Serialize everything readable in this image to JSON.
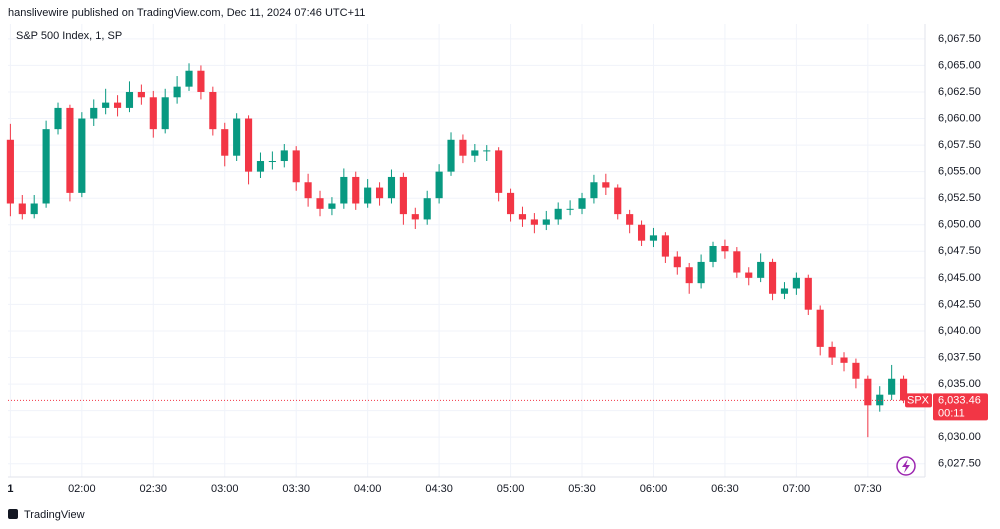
{
  "header": {
    "published": "hanslivewire published on TradingView.com, Dec 11, 2024 07:46 UTC+11"
  },
  "chart_data": {
    "type": "candlestick",
    "title": "S&P 500 Index, 1, SP",
    "symbol": "SPX",
    "up_color": "#089981",
    "down_color": "#f23645",
    "grid": true,
    "x": [
      "01:30",
      "01:35",
      "01:40",
      "01:45",
      "01:50",
      "01:55",
      "02:00",
      "02:05",
      "02:10",
      "02:15",
      "02:20",
      "02:25",
      "02:30",
      "02:35",
      "02:40",
      "02:45",
      "02:50",
      "02:55",
      "03:00",
      "03:05",
      "03:10",
      "03:15",
      "03:20",
      "03:25",
      "03:30",
      "03:35",
      "03:40",
      "03:45",
      "03:50",
      "03:55",
      "04:00",
      "04:05",
      "04:10",
      "04:15",
      "04:20",
      "04:25",
      "04:30",
      "04:35",
      "04:40",
      "04:45",
      "04:50",
      "04:55",
      "05:00",
      "05:05",
      "05:10",
      "05:15",
      "05:20",
      "05:25",
      "05:30",
      "05:35",
      "05:40",
      "05:45",
      "05:50",
      "05:55",
      "06:00",
      "06:05",
      "06:10",
      "06:15",
      "06:20",
      "06:25",
      "06:30",
      "06:35",
      "06:40",
      "06:45",
      "06:50",
      "06:55",
      "07:00",
      "07:05",
      "07:10",
      "07:15",
      "07:20",
      "07:25",
      "07:30",
      "07:35",
      "07:40",
      "07:45"
    ],
    "open": [
      6058,
      6052,
      6051,
      6052,
      6059,
      6061,
      6053,
      6060,
      6061,
      6061.5,
      6061,
      6062.5,
      6062,
      6059,
      6062,
      6063,
      6064.5,
      6062.5,
      6059,
      6056.5,
      6060,
      6055,
      6056,
      6056,
      6057,
      6054,
      6052.5,
      6051.5,
      6052,
      6054.5,
      6052,
      6053.5,
      6052.5,
      6054.5,
      6051,
      6050.5,
      6052.5,
      6055,
      6058,
      6056.5,
      6057,
      6057,
      6053,
      6051,
      6050.5,
      6050,
      6050.5,
      6051.5,
      6051.5,
      6052.5,
      6054,
      6053.5,
      6051,
      6050,
      6048.5,
      6049,
      6047,
      6046,
      6044.5,
      6046.5,
      6048,
      6047.5,
      6045.5,
      6045,
      6046.5,
      6043.5,
      6044,
      6045,
      6042,
      6038.5,
      6037.5,
      6037,
      6035.5,
      6033,
      6034,
      6035.5
    ],
    "high": [
      6059.5,
      6052.8,
      6052.8,
      6059.8,
      6061.5,
      6061.3,
      6060.6,
      6061.8,
      6062.8,
      6062.2,
      6063.5,
      6063.2,
      6062.6,
      6062.8,
      6064,
      6065.2,
      6065,
      6063,
      6059.6,
      6060.5,
      6060.3,
      6056.8,
      6056.9,
      6057.6,
      6057.4,
      6054.8,
      6053.2,
      6052.6,
      6055.3,
      6055,
      6054.3,
      6054,
      6055.2,
      6054.9,
      6051.6,
      6053.2,
      6055.7,
      6058.7,
      6058.5,
      6057.6,
      6057.5,
      6057.3,
      6053.4,
      6051.7,
      6051.1,
      6051.3,
      6052.1,
      6052.3,
      6053,
      6054.7,
      6054.8,
      6053.8,
      6051.4,
      6050.4,
      6049.7,
      6049.3,
      6047.5,
      6046.4,
      6047.2,
      6048.4,
      6048.6,
      6047.9,
      6046,
      6047.3,
      6046.8,
      6044.6,
      6045.5,
      6045.3,
      6042.4,
      6039,
      6038,
      6037.4,
      6035.8,
      6034.8,
      6036.8,
      6035.8
    ],
    "low": [
      6050.8,
      6050.5,
      6050.6,
      6051.6,
      6058.5,
      6052.2,
      6052.6,
      6059.3,
      6060.4,
      6060.2,
      6060.6,
      6061.3,
      6058.2,
      6058.6,
      6061.4,
      6062.6,
      6061.8,
      6058.4,
      6055.5,
      6056,
      6053.8,
      6054.4,
      6055.2,
      6055.4,
      6053.2,
      6051.7,
      6050.8,
      6050.9,
      6051.5,
      6051.4,
      6051.6,
      6051.8,
      6052,
      6050,
      6049.6,
      6050,
      6052,
      6054.6,
      6055.8,
      6055.9,
      6056,
      6052.2,
      6050.3,
      6049.8,
      6049.2,
      6049.5,
      6050,
      6050.9,
      6051,
      6052,
      6052.8,
      6050.5,
      6049.2,
      6048,
      6047.9,
      6046.4,
      6045.3,
      6043.5,
      6044,
      6046,
      6046.8,
      6045,
      6044.3,
      6044.6,
      6042.9,
      6043,
      6043.4,
      6041.5,
      6037.7,
      6036.8,
      6036.2,
      6034.6,
      6030,
      6032.4,
      6033.5,
      6033.2
    ],
    "close": [
      6052,
      6051,
      6052,
      6059,
      6061,
      6053,
      6060,
      6061,
      6061.5,
      6061,
      6062.5,
      6062,
      6059,
      6062,
      6063,
      6064.5,
      6062.5,
      6059,
      6056.5,
      6060,
      6055,
      6056,
      6056,
      6057,
      6054,
      6052.5,
      6051.5,
      6052,
      6054.5,
      6052,
      6053.5,
      6052.5,
      6054.5,
      6051,
      6050.5,
      6052.5,
      6055,
      6058,
      6056.5,
      6057,
      6057,
      6053,
      6051,
      6050.5,
      6050,
      6050.5,
      6051.5,
      6051.5,
      6052.5,
      6054,
      6053.5,
      6051,
      6050,
      6048.5,
      6049,
      6047,
      6046,
      6044.5,
      6046.5,
      6048,
      6047.5,
      6045.5,
      6045,
      6046.5,
      6043.5,
      6044,
      6045,
      6042,
      6038.5,
      6037.5,
      6037,
      6035.5,
      6033,
      6034,
      6035.5,
      6033.46
    ],
    "xlim": [
      "01:29",
      "07:54"
    ],
    "xticks": [
      {
        "value": "01:30",
        "label": "1"
      },
      "02:00",
      "02:30",
      "03:00",
      "03:30",
      "04:00",
      "04:30",
      "05:00",
      "05:30",
      "06:00",
      "06:30",
      "07:00",
      "07:30"
    ],
    "ylim": [
      6026.25,
      6068.9
    ],
    "yticks": [
      {
        "value": 6027.5,
        "label": "6,027.50"
      },
      {
        "value": 6030,
        "label": "6,030.00"
      },
      {
        "value": 6032.5,
        "label": "6,032.50"
      },
      {
        "value": 6035,
        "label": "6,035.00"
      },
      {
        "value": 6037.5,
        "label": "6,037.50"
      },
      {
        "value": 6040,
        "label": "6,040.00"
      },
      {
        "value": 6042.5,
        "label": "6,042.50"
      },
      {
        "value": 6045,
        "label": "6,045.00"
      },
      {
        "value": 6047.5,
        "label": "6,047.50"
      },
      {
        "value": 6050,
        "label": "6,050.00"
      },
      {
        "value": 6052.5,
        "label": "6,052.50"
      },
      {
        "value": 6055,
        "label": "6,055.00"
      },
      {
        "value": 6057.5,
        "label": "6,057.50"
      },
      {
        "value": 6060,
        "label": "6,060.00"
      },
      {
        "value": 6062.5,
        "label": "6,062.50"
      },
      {
        "value": 6065,
        "label": "6,065.00"
      },
      {
        "value": 6067.5,
        "label": "6,067.50"
      }
    ],
    "last_price": 6033.46,
    "last_price_label": "6,033.46",
    "countdown": "00:11"
  },
  "footer": {
    "brand": "TradingView"
  }
}
